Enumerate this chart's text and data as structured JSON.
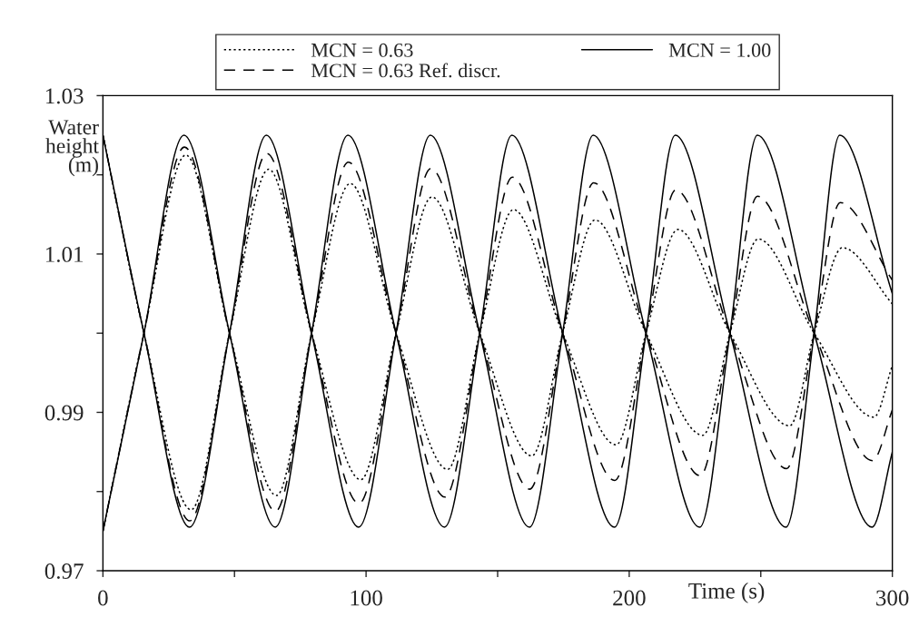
{
  "chart_data": {
    "type": "line",
    "xlabel": "Time (s)",
    "ylabel": "Water\nheight\n(m)",
    "xlim": [
      0,
      300
    ],
    "xticks": [
      0,
      {
        "value": 50,
        "label": null
      },
      100,
      {
        "value": 150,
        "label": null
      },
      200,
      {
        "value": 250,
        "label": null
      },
      300
    ],
    "ylim": [
      0.97,
      1.03
    ],
    "yticks": [
      {
        "value": 0.97,
        "label": "0.97"
      },
      {
        "value": 0.98,
        "label": null
      },
      {
        "value": 0.99,
        "label": "0.99"
      },
      {
        "value": 1.0,
        "label": null
      },
      {
        "value": 1.01,
        "label": "1.01"
      },
      {
        "value": 1.02,
        "label": null
      },
      {
        "value": 1.03,
        "label": "1.03"
      }
    ],
    "grid": false,
    "legend": "top",
    "marker": "none",
    "series": [
      {
        "name": "MCN = 0.63",
        "color": "#000000",
        "line_style": "dotted",
        "x": [
          0,
          15.6,
          33.5,
          48.1,
          63,
          79.3,
          98,
          111.4,
          125,
          143.2,
          163,
          174.7,
          187,
          206.4,
          228,
          238.3,
          249,
          270.3,
          293,
          300
        ],
        "values": [
          1.025,
          1.0,
          0.9777,
          1.0,
          1.0207,
          1.0,
          0.9815,
          1.0,
          1.0172,
          1.0,
          0.9845,
          1.0,
          1.0143,
          1.0,
          0.9871,
          1.0,
          1.0119,
          1.0,
          0.9894,
          0.9959
        ]
      },
      {
        "color": "#000000",
        "line_style": "dotted",
        "x": [
          0,
          15.6,
          31.5,
          48.1,
          66,
          79.3,
          94,
          111.4,
          131,
          143.2,
          156,
          174.7,
          195,
          206.4,
          218.5,
          238.3,
          261,
          270.3,
          281,
          300
        ],
        "values": [
          0.975,
          1.0,
          1.0225,
          1.0,
          0.9795,
          1.0,
          1.0189,
          1.0,
          0.9828,
          1.0,
          1.0156,
          1.0,
          0.9859,
          1.0,
          1.0131,
          1.0,
          0.9883,
          1.0,
          1.0108,
          1.0037
        ]
      },
      {
        "name": "MCN = 0.63 Ref. discr.",
        "color": "#000000",
        "line_style": "dashed",
        "x": [
          0,
          15.6,
          33,
          48.1,
          62.3,
          79.3,
          97.3,
          111.4,
          124.6,
          143.2,
          162.2,
          174.7,
          186.5,
          206.4,
          227,
          238.3,
          248.8,
          270.3,
          292.5,
          300
        ],
        "values": [
          1.025,
          1.0,
          0.9763,
          1.0,
          1.0227,
          1.0,
          0.9785,
          1.0,
          1.0208,
          1.0,
          0.9803,
          1.0,
          1.019,
          1.0,
          0.982,
          1.0,
          1.0173,
          1.0,
          0.9839,
          0.9903
        ]
      },
      {
        "color": "#000000",
        "line_style": "dashed",
        "x": [
          0,
          15.6,
          31,
          48.1,
          65.6,
          79.3,
          93.3,
          111.4,
          130,
          143.2,
          155.6,
          174.7,
          194.5,
          206.4,
          217.7,
          238.3,
          259.8,
          270.3,
          280.2,
          300
        ],
        "values": [
          0.975,
          1.0,
          1.0235,
          1.0,
          0.9775,
          1.0,
          1.0216,
          1.0,
          0.9793,
          1.0,
          1.0197,
          1.0,
          0.9814,
          1.0,
          1.0181,
          1.0,
          0.9829,
          1.0,
          1.0165,
          1.0067
        ]
      },
      {
        "name": "MCN = 1.00",
        "color": "#000000",
        "line_style": "solid",
        "x": [
          0,
          15.6,
          32.9,
          48.1,
          62.1,
          79.3,
          97.2,
          111.4,
          124.4,
          143.2,
          162.1,
          174.7,
          186.3,
          206.4,
          226.8,
          238.3,
          248.7,
          270.3,
          292.3,
          300
        ],
        "values": [
          1.025,
          1.0,
          0.9755,
          1.0,
          1.025,
          1.0,
          0.9755,
          1.0,
          1.025,
          1.0,
          0.9755,
          1.0,
          1.025,
          1.0,
          0.9755,
          1.0,
          1.025,
          1.0,
          0.9755,
          0.985
        ]
      },
      {
        "color": "#000000",
        "line_style": "solid",
        "x": [
          0,
          15.6,
          30.8,
          48.1,
          65.5,
          79.3,
          93.1,
          111.4,
          129.8,
          143.2,
          155.4,
          174.7,
          194.4,
          206.4,
          217.5,
          238.3,
          259.6,
          270.3,
          280,
          300
        ],
        "values": [
          0.975,
          1.0,
          1.025,
          1.0,
          0.9755,
          1.0,
          1.025,
          1.0,
          0.9755,
          1.0,
          1.025,
          1.0,
          0.9755,
          1.0,
          1.025,
          1.0,
          0.9755,
          1.0,
          1.025,
          1.005
        ]
      }
    ]
  }
}
